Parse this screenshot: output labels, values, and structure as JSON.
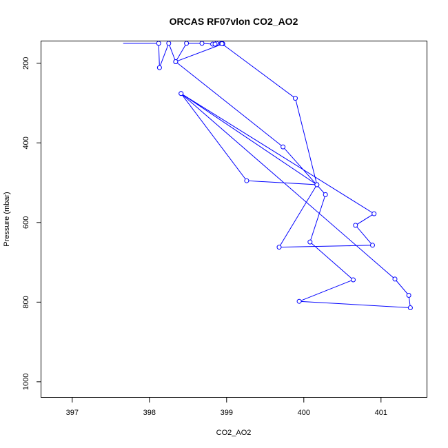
{
  "chart_data": {
    "type": "line",
    "title": "ORCAS RF07vlon CO2_AO2",
    "xlabel": "CO2_AO2",
    "ylabel": "Pressure (mbar)",
    "xlim": [
      396.6,
      401.6
    ],
    "ylim": [
      1040,
      145
    ],
    "y_reversed": true,
    "xticks": [
      397,
      398,
      399,
      400,
      401
    ],
    "yticks": [
      200,
      400,
      600,
      800,
      1000
    ],
    "grid": false,
    "series": [
      {
        "color": "#0000ff",
        "marker": "open-circle",
        "line_start": [
          397.66,
          150
        ],
        "points": [
          [
            398.12,
            150
          ],
          [
            398.13,
            211
          ],
          [
            398.25,
            150
          ],
          [
            398.34,
            196
          ],
          [
            398.48,
            150
          ],
          [
            398.68,
            150
          ],
          [
            398.82,
            152
          ],
          [
            398.87,
            150
          ],
          [
            398.85,
            152
          ],
          [
            398.94,
            150
          ],
          [
            398.95,
            151
          ],
          [
            398.93,
            150
          ],
          [
            398.94,
            151
          ],
          [
            399.89,
            288
          ],
          [
            400.17,
            505
          ],
          [
            398.41,
            276
          ],
          [
            400.91,
            578
          ],
          [
            400.67,
            607
          ],
          [
            400.89,
            657
          ],
          [
            399.68,
            662
          ],
          [
            400.17,
            505
          ],
          [
            399.26,
            495
          ],
          [
            398.41,
            276
          ],
          [
            401.18,
            742
          ],
          [
            401.36,
            783
          ],
          [
            401.38,
            814
          ],
          [
            399.94,
            798
          ],
          [
            400.64,
            744
          ],
          [
            400.08,
            649
          ],
          [
            400.28,
            530
          ],
          [
            399.73,
            410
          ],
          [
            398.34,
            196
          ]
        ],
        "line_end": [
          398.97,
          150
        ]
      }
    ]
  }
}
